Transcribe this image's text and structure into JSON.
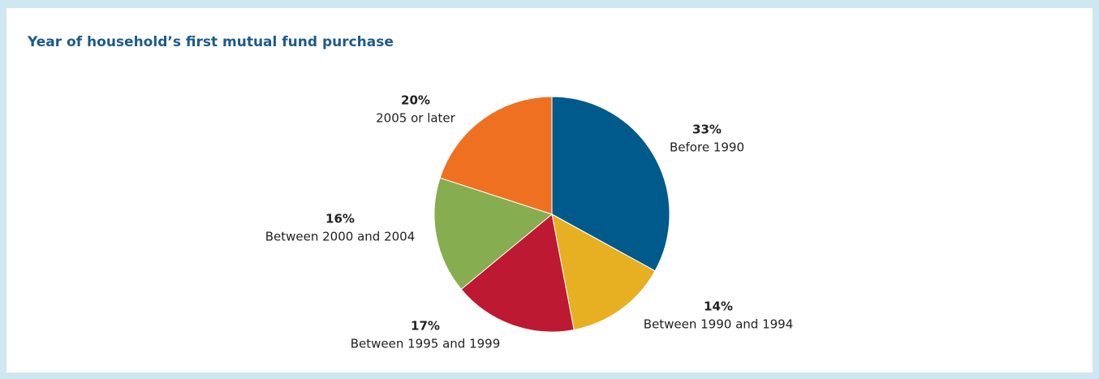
{
  "chart_data": {
    "type": "pie",
    "title": "Year of household’s first mutual fund purchase",
    "categories": [
      "Before 1990",
      "Between 1990 and 1994",
      "Between 1995 and 1999",
      "Between 2000 and 2004",
      "2005 or later"
    ],
    "values": [
      33,
      14,
      17,
      16,
      20
    ],
    "value_labels": [
      "33%",
      "14%",
      "17%",
      "16%",
      "20%"
    ],
    "colors": [
      "#005a8c",
      "#e6b022",
      "#be1932",
      "#86ad4f",
      "#f07022"
    ]
  }
}
